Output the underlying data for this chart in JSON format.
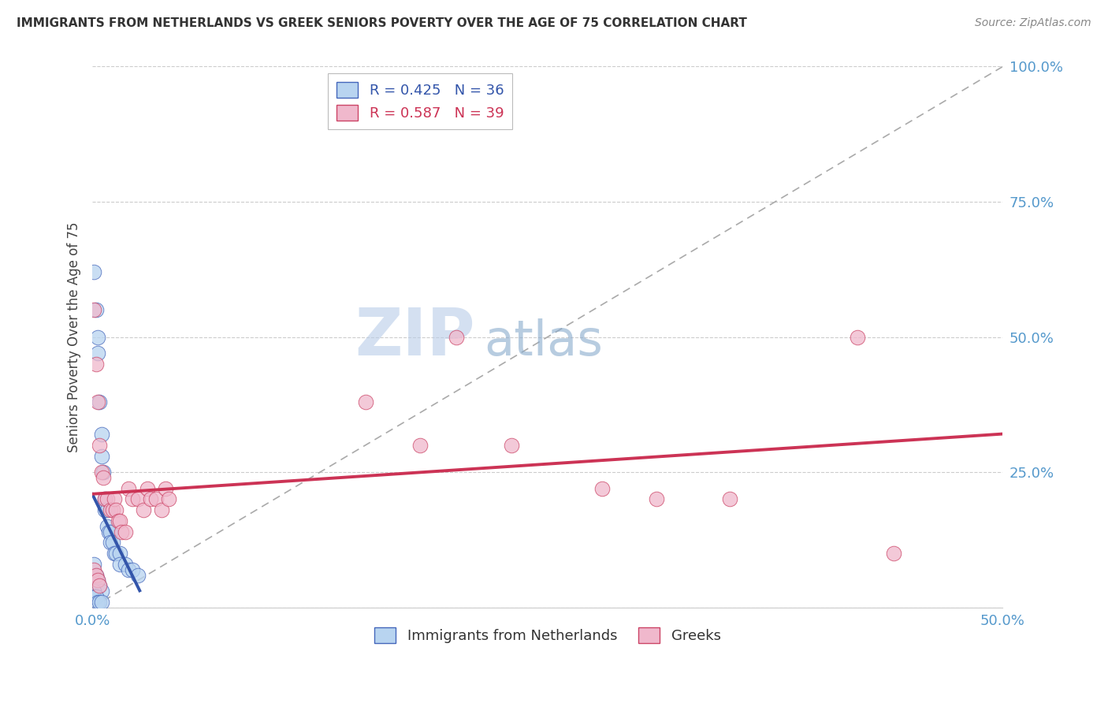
{
  "title": "IMMIGRANTS FROM NETHERLANDS VS GREEK SENIORS POVERTY OVER THE AGE OF 75 CORRELATION CHART",
  "source": "Source: ZipAtlas.com",
  "ylabel": "Seniors Poverty Over the Age of 75",
  "xlim": [
    0,
    0.5
  ],
  "ylim": [
    0,
    1.0
  ],
  "xtick_positions": [
    0.0,
    0.1,
    0.2,
    0.3,
    0.4,
    0.5
  ],
  "xtick_labels": [
    "0.0%",
    "",
    "",
    "",
    "",
    "50.0%"
  ],
  "ytick_positions": [
    0.0,
    0.25,
    0.5,
    0.75,
    1.0
  ],
  "ytick_labels": [
    "",
    "25.0%",
    "50.0%",
    "75.0%",
    "100.0%"
  ],
  "legend_r_entries": [
    {
      "label": "R = 0.425   N = 36",
      "face": "#a8c8f0",
      "edge": "#5588cc"
    },
    {
      "label": "R = 0.587   N = 39",
      "face": "#f0b0c8",
      "edge": "#cc5577"
    }
  ],
  "legend_series": [
    {
      "label": "Immigrants from Netherlands",
      "face": "#a8c8f0",
      "edge": "#5588cc"
    },
    {
      "label": "Greeks",
      "face": "#f0b0c8",
      "edge": "#cc5577"
    }
  ],
  "blue_color": "#b8d4f0",
  "blue_edge": "#4466bb",
  "pink_color": "#f0b8cc",
  "pink_edge": "#cc4466",
  "blue_line": "#3355aa",
  "pink_line": "#cc3355",
  "blue_scatter": [
    [
      0.001,
      0.62
    ],
    [
      0.002,
      0.55
    ],
    [
      0.003,
      0.5
    ],
    [
      0.003,
      0.47
    ],
    [
      0.004,
      0.38
    ],
    [
      0.005,
      0.32
    ],
    [
      0.005,
      0.28
    ],
    [
      0.006,
      0.25
    ],
    [
      0.007,
      0.2
    ],
    [
      0.007,
      0.18
    ],
    [
      0.008,
      0.18
    ],
    [
      0.008,
      0.15
    ],
    [
      0.009,
      0.14
    ],
    [
      0.01,
      0.14
    ],
    [
      0.01,
      0.12
    ],
    [
      0.011,
      0.12
    ],
    [
      0.012,
      0.1
    ],
    [
      0.013,
      0.1
    ],
    [
      0.015,
      0.1
    ],
    [
      0.015,
      0.08
    ],
    [
      0.018,
      0.08
    ],
    [
      0.02,
      0.07
    ],
    [
      0.022,
      0.07
    ],
    [
      0.025,
      0.06
    ],
    [
      0.001,
      0.08
    ],
    [
      0.002,
      0.06
    ],
    [
      0.002,
      0.05
    ],
    [
      0.003,
      0.05
    ],
    [
      0.004,
      0.04
    ],
    [
      0.005,
      0.03
    ],
    [
      0.001,
      0.03
    ],
    [
      0.001,
      0.02
    ],
    [
      0.002,
      0.02
    ],
    [
      0.003,
      0.01
    ],
    [
      0.004,
      0.01
    ],
    [
      0.005,
      0.01
    ]
  ],
  "pink_scatter": [
    [
      0.001,
      0.55
    ],
    [
      0.002,
      0.45
    ],
    [
      0.003,
      0.38
    ],
    [
      0.004,
      0.3
    ],
    [
      0.005,
      0.25
    ],
    [
      0.006,
      0.24
    ],
    [
      0.007,
      0.2
    ],
    [
      0.008,
      0.2
    ],
    [
      0.01,
      0.18
    ],
    [
      0.011,
      0.18
    ],
    [
      0.012,
      0.2
    ],
    [
      0.013,
      0.18
    ],
    [
      0.014,
      0.16
    ],
    [
      0.015,
      0.16
    ],
    [
      0.016,
      0.14
    ],
    [
      0.018,
      0.14
    ],
    [
      0.02,
      0.22
    ],
    [
      0.022,
      0.2
    ],
    [
      0.025,
      0.2
    ],
    [
      0.028,
      0.18
    ],
    [
      0.03,
      0.22
    ],
    [
      0.032,
      0.2
    ],
    [
      0.035,
      0.2
    ],
    [
      0.038,
      0.18
    ],
    [
      0.04,
      0.22
    ],
    [
      0.042,
      0.2
    ],
    [
      0.001,
      0.07
    ],
    [
      0.002,
      0.06
    ],
    [
      0.003,
      0.05
    ],
    [
      0.004,
      0.04
    ],
    [
      0.15,
      0.38
    ],
    [
      0.18,
      0.3
    ],
    [
      0.2,
      0.5
    ],
    [
      0.23,
      0.3
    ],
    [
      0.28,
      0.22
    ],
    [
      0.31,
      0.2
    ],
    [
      0.35,
      0.2
    ],
    [
      0.42,
      0.5
    ],
    [
      0.44,
      0.1
    ]
  ],
  "watermark_zip": "ZIP",
  "watermark_atlas": "atlas",
  "watermark_color_zip": "#b8cce8",
  "watermark_color_atlas": "#88aacc",
  "background_color": "#ffffff",
  "grid_color": "#cccccc",
  "ref_line_color": "#aaaaaa"
}
